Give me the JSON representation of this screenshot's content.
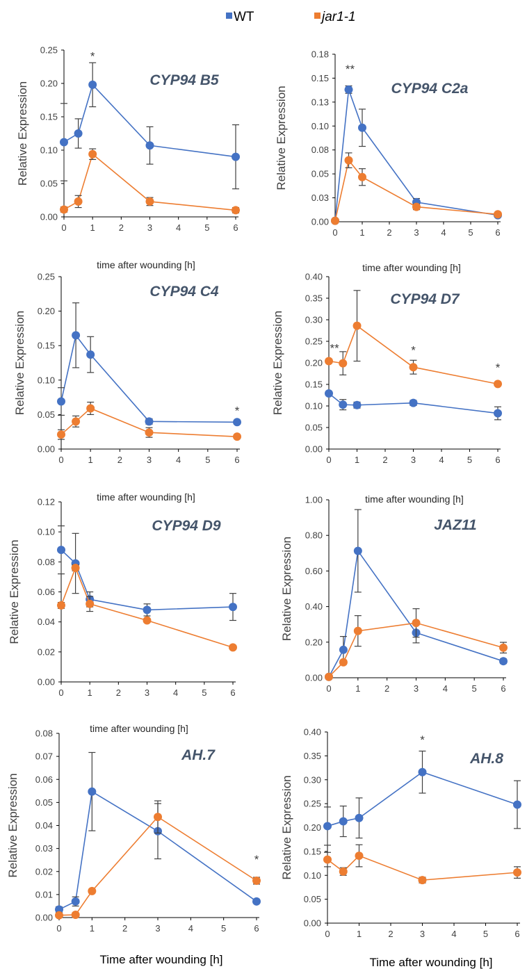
{
  "colors": {
    "wt": "#4472c4",
    "jar1": "#ed7d31",
    "axis": "#000000",
    "gene_label": "#44546a"
  },
  "legend": {
    "position": "top-center",
    "items": [
      {
        "label": "WT",
        "color": "#4472c4",
        "italic": false
      },
      {
        "label": "jar1-1",
        "color": "#ed7d31",
        "italic": true
      }
    ]
  },
  "chart_data": [
    {
      "type": "line",
      "gene": "CYP94 B5",
      "ylabel": "Relative Expression",
      "xlabel": "",
      "xlim": [
        0,
        6
      ],
      "xticks": [
        0,
        1,
        2,
        3,
        4,
        5,
        6
      ],
      "ylim": [
        0,
        0.25
      ],
      "yticks": [
        "0.00",
        "0.05",
        "0.10",
        "0.15",
        "0.20",
        "0.25"
      ],
      "series": [
        {
          "name": "WT",
          "x": [
            0,
            0.5,
            1,
            3,
            6
          ],
          "y": [
            0.112,
            0.125,
            0.198,
            0.107,
            0.09
          ],
          "err": [
            0.058,
            0.022,
            0.033,
            0.028,
            0.048
          ]
        },
        {
          "name": "jar1-1",
          "x": [
            0,
            0.5,
            1,
            3,
            6
          ],
          "y": [
            0.011,
            0.023,
            0.094,
            0.023,
            0.01
          ],
          "err": [
            0.004,
            0.009,
            0.008,
            0.006,
            0.004
          ]
        }
      ],
      "annotations": [
        {
          "x": 1,
          "y": 0.235,
          "text": "*"
        }
      ]
    },
    {
      "type": "line",
      "gene": "CYP94 C2a",
      "ylabel": "Relative Expression",
      "xlabel": "time after wounding [h]",
      "xlim": [
        0,
        6
      ],
      "xticks": [
        0,
        1,
        2,
        3,
        4,
        5,
        6
      ],
      "ylim": [
        0,
        0.18
      ],
      "yticks": [
        "0.00",
        "0.03",
        "0.05",
        "0.08",
        "0.10",
        "0.13",
        "0.15",
        "0.18"
      ],
      "series": [
        {
          "name": "WT",
          "x": [
            0,
            0.5,
            1,
            3,
            6
          ],
          "y": [
            0.001,
            0.142,
            0.101,
            0.021,
            0.007
          ],
          "err": [
            0.001,
            0.004,
            0.02,
            0.004,
            0.002
          ]
        },
        {
          "name": "jar1-1",
          "x": [
            0,
            0.5,
            1,
            3,
            6
          ],
          "y": [
            0.001,
            0.066,
            0.048,
            0.016,
            0.008
          ],
          "err": [
            0.001,
            0.008,
            0.009,
            0.003,
            0.002
          ]
        }
      ],
      "annotations": [
        {
          "x": 0.55,
          "y": 0.16,
          "text": "**"
        }
      ]
    },
    {
      "type": "line",
      "gene": "CYP94 C4",
      "ylabel": "Relative Expression",
      "xlabel": "time after wounding [h]",
      "xlim": [
        0,
        6
      ],
      "xticks": [
        0,
        1,
        2,
        3,
        4,
        5,
        6
      ],
      "ylim": [
        0,
        0.25
      ],
      "yticks": [
        "0.00",
        "0.05",
        "0.10",
        "0.15",
        "0.20",
        "0.25"
      ],
      "series": [
        {
          "name": "WT",
          "x": [
            0,
            0.5,
            1,
            3,
            6
          ],
          "y": [
            0.069,
            0.165,
            0.137,
            0.04,
            0.039
          ],
          "err": [
            0.02,
            0.047,
            0.026,
            0.004,
            0.003
          ]
        },
        {
          "name": "jar1-1",
          "x": [
            0,
            0.5,
            1,
            3,
            6
          ],
          "y": [
            0.021,
            0.04,
            0.059,
            0.024,
            0.018
          ],
          "err": [
            0.007,
            0.008,
            0.009,
            0.007,
            0.002
          ]
        }
      ],
      "annotations": [
        {
          "x": 6,
          "y": 0.05,
          "text": "*"
        }
      ]
    },
    {
      "type": "line",
      "gene": "CYP94 D7",
      "ylabel": "Relative Expression",
      "xlabel": "time after wounding [h]",
      "xlim": [
        0,
        6
      ],
      "xticks": [
        0,
        1,
        2,
        3,
        4,
        5,
        6
      ],
      "ylim": [
        0,
        0.4
      ],
      "yticks": [
        "0.00",
        "0.05",
        "0.10",
        "0.15",
        "0.20",
        "0.25",
        "0.30",
        "0.35",
        "0.40"
      ],
      "series": [
        {
          "name": "WT",
          "x": [
            0,
            0.5,
            1,
            3,
            6
          ],
          "y": [
            0.129,
            0.103,
            0.102,
            0.107,
            0.083
          ],
          "err": [
            0.004,
            0.012,
            0.007,
            0.006,
            0.015
          ]
        },
        {
          "name": "jar1-1",
          "x": [
            0,
            0.5,
            1,
            3,
            6
          ],
          "y": [
            0.204,
            0.199,
            0.286,
            0.19,
            0.151
          ],
          "err": [
            0.004,
            0.027,
            0.082,
            0.016,
            0.004
          ]
        }
      ],
      "annotations": [
        {
          "x": 0.2,
          "y": 0.225,
          "text": "**"
        },
        {
          "x": 3,
          "y": 0.22,
          "text": "*"
        },
        {
          "x": 6,
          "y": 0.18,
          "text": "*"
        }
      ]
    },
    {
      "type": "line",
      "gene": "CYP94 D9",
      "ylabel": "Relative Expression",
      "xlabel": "time after wounding [h]",
      "xlim": [
        0,
        6
      ],
      "xticks": [
        0,
        1,
        2,
        3,
        4,
        5,
        6
      ],
      "ylim": [
        0,
        0.12
      ],
      "yticks": [
        "0.00",
        "0.02",
        "0.04",
        "0.06",
        "0.08",
        "0.10",
        "0.12"
      ],
      "series": [
        {
          "name": "WT",
          "x": [
            0,
            0.5,
            1,
            3,
            6
          ],
          "y": [
            0.088,
            0.079,
            0.055,
            0.048,
            0.05
          ],
          "err": [
            0.016,
            0.02,
            0.005,
            0.004,
            0.009
          ]
        },
        {
          "name": "jar1-1",
          "x": [
            0,
            0.5,
            1,
            3,
            6
          ],
          "y": [
            0.051,
            0.076,
            0.052,
            0.041,
            0.023
          ],
          "err": [
            0.002,
            0.002,
            0.005,
            0.001,
            0.001
          ]
        }
      ],
      "annotations": []
    },
    {
      "type": "line",
      "gene": "JAZ11",
      "ylabel": "Relative Expression",
      "xlabel": "time after wounding [h]",
      "xlim": [
        0,
        6
      ],
      "xticks": [
        0,
        1,
        2,
        3,
        4,
        5,
        6
      ],
      "ylim": [
        0,
        1.0
      ],
      "yticks": [
        "0.00",
        "0.20",
        "0.40",
        "0.60",
        "0.80",
        "1.00"
      ],
      "series": [
        {
          "name": "WT",
          "x": [
            0,
            0.5,
            1,
            3,
            6
          ],
          "y": [
            0.005,
            0.157,
            0.713,
            0.253,
            0.093
          ],
          "err": [
            0.003,
            0.075,
            0.232,
            0.057,
            0.013
          ]
        },
        {
          "name": "jar1-1",
          "x": [
            0,
            0.5,
            1,
            3,
            6
          ],
          "y": [
            0.005,
            0.087,
            0.263,
            0.308,
            0.169
          ],
          "err": [
            0.003,
            0.012,
            0.086,
            0.08,
            0.03
          ]
        }
      ],
      "annotations": []
    },
    {
      "type": "line",
      "gene": "AH.7",
      "ylabel": "Relative Expression",
      "xlabel": "Time after wounding [h]",
      "xlim": [
        0,
        6
      ],
      "xticks": [
        0,
        1,
        2,
        3,
        4,
        5,
        6
      ],
      "ylim": [
        0,
        0.08
      ],
      "yticks": [
        "0.00",
        "0.01",
        "0.02",
        "0.03",
        "0.04",
        "0.05",
        "0.06",
        "0.07",
        "0.08"
      ],
      "series": [
        {
          "name": "WT",
          "x": [
            0,
            0.5,
            1,
            3,
            6
          ],
          "y": [
            0.0035,
            0.007,
            0.0547,
            0.0375,
            0.007
          ],
          "err": [
            0.0012,
            0.002,
            0.017,
            0.012,
            0.0008
          ]
        },
        {
          "name": "jar1-1",
          "x": [
            0,
            0.5,
            1,
            3,
            6
          ],
          "y": [
            0.001,
            0.0012,
            0.0115,
            0.0437,
            0.016
          ],
          "err": [
            0.0005,
            0.0005,
            0.0008,
            0.007,
            0.0015
          ]
        }
      ],
      "annotations": [
        {
          "x": 6,
          "y": 0.0235,
          "text": "*"
        }
      ]
    },
    {
      "type": "line",
      "gene": "AH.8",
      "ylabel": "Relative Expression",
      "xlabel": "Time after wounding [h]",
      "xlim": [
        0,
        6
      ],
      "xticks": [
        0,
        1,
        2,
        3,
        4,
        5,
        6
      ],
      "ylim": [
        0,
        0.4
      ],
      "yticks": [
        "0.00",
        "0.05",
        "0.10",
        "0.15",
        "0.20",
        "0.25",
        "0.30",
        "0.35",
        "0.40"
      ],
      "series": [
        {
          "name": "WT",
          "x": [
            0,
            0.5,
            1,
            3,
            6
          ],
          "y": [
            0.203,
            0.213,
            0.22,
            0.316,
            0.248
          ],
          "err": [
            0.04,
            0.032,
            0.042,
            0.044,
            0.05
          ]
        },
        {
          "name": "jar1-1",
          "x": [
            0,
            0.5,
            1,
            3,
            6
          ],
          "y": [
            0.133,
            0.108,
            0.141,
            0.09,
            0.106
          ],
          "err": [
            0.015,
            0.008,
            0.023,
            0.006,
            0.012
          ]
        }
      ],
      "annotations": [
        {
          "x": 3,
          "y": 0.375,
          "text": "*"
        }
      ]
    }
  ]
}
